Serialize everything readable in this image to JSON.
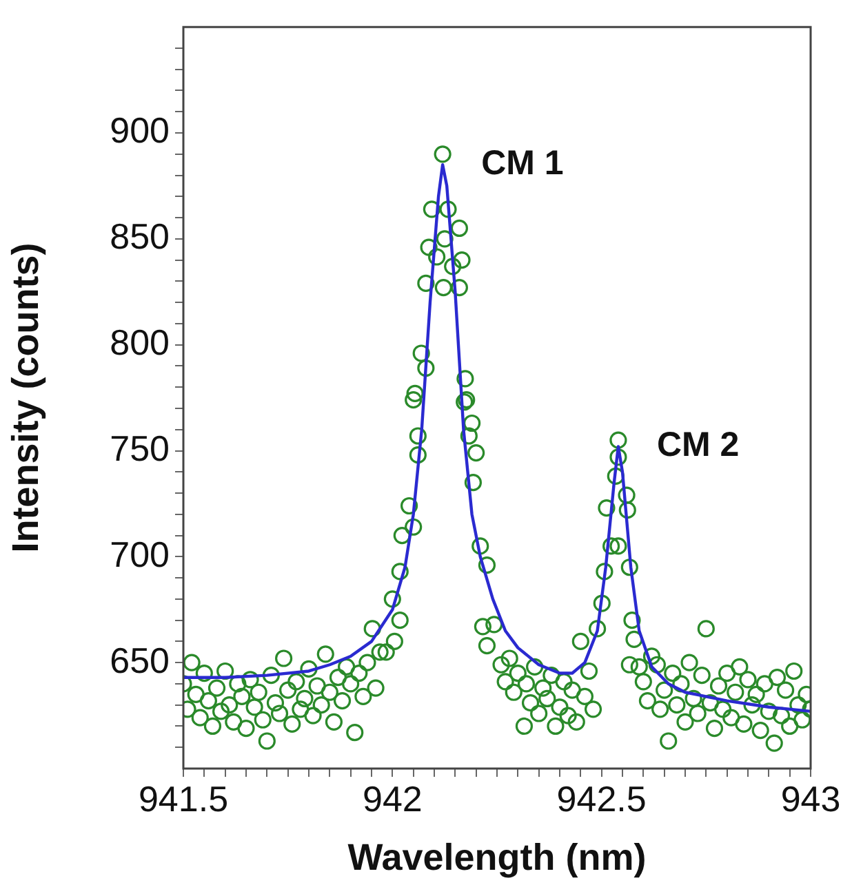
{
  "chart_data": {
    "type": "scatter",
    "xlabel": "Wavelength (nm)",
    "ylabel": "Intensity (counts)",
    "xlim": [
      941.5,
      943
    ],
    "ylim": [
      600,
      950
    ],
    "xticks": [
      941.5,
      {
        "value": 941.55,
        "label": null
      },
      {
        "value": 941.6,
        "label": null
      },
      {
        "value": 941.65,
        "label": null
      },
      {
        "value": 941.7,
        "label": null
      },
      {
        "value": 941.75,
        "label": null
      },
      {
        "value": 941.8,
        "label": null
      },
      {
        "value": 941.85,
        "label": null
      },
      {
        "value": 941.9,
        "label": null
      },
      {
        "value": 941.95,
        "label": null
      },
      942,
      {
        "value": 942.05,
        "label": null
      },
      {
        "value": 942.1,
        "label": null
      },
      {
        "value": 942.15,
        "label": null
      },
      {
        "value": 942.2,
        "label": null
      },
      {
        "value": 942.25,
        "label": null
      },
      {
        "value": 942.3,
        "label": null
      },
      {
        "value": 942.35,
        "label": null
      },
      {
        "value": 942.4,
        "label": null
      },
      {
        "value": 942.45,
        "label": null
      },
      942.5,
      {
        "value": 942.55,
        "label": null
      },
      {
        "value": 942.6,
        "label": null
      },
      {
        "value": 942.65,
        "label": null
      },
      {
        "value": 942.7,
        "label": null
      },
      {
        "value": 942.75,
        "label": null
      },
      {
        "value": 942.8,
        "label": null
      },
      {
        "value": 942.85,
        "label": null
      },
      {
        "value": 942.9,
        "label": null
      },
      {
        "value": 942.95,
        "label": null
      },
      943
    ],
    "yticks": [
      {
        "value": 610,
        "label": null
      },
      {
        "value": 620,
        "label": null
      },
      {
        "value": 630,
        "label": null
      },
      {
        "value": 640,
        "label": null
      },
      650,
      {
        "value": 660,
        "label": null
      },
      {
        "value": 670,
        "label": null
      },
      {
        "value": 680,
        "label": null
      },
      {
        "value": 690,
        "label": null
      },
      700,
      {
        "value": 710,
        "label": null
      },
      {
        "value": 720,
        "label": null
      },
      {
        "value": 730,
        "label": null
      },
      {
        "value": 740,
        "label": null
      },
      750,
      {
        "value": 760,
        "label": null
      },
      {
        "value": 770,
        "label": null
      },
      {
        "value": 780,
        "label": null
      },
      {
        "value": 790,
        "label": null
      },
      800,
      {
        "value": 810,
        "label": null
      },
      {
        "value": 820,
        "label": null
      },
      {
        "value": 830,
        "label": null
      },
      {
        "value": 840,
        "label": null
      },
      850,
      {
        "value": 860,
        "label": null
      },
      {
        "value": 870,
        "label": null
      },
      {
        "value": 880,
        "label": null
      },
      {
        "value": 890,
        "label": null
      },
      900,
      {
        "value": 910,
        "label": null
      },
      {
        "value": 920,
        "label": null
      },
      {
        "value": 930,
        "label": null
      },
      {
        "value": 940,
        "label": null
      }
    ],
    "grid": false,
    "legend": false,
    "annotations": [
      {
        "text": "CM 1",
        "x": 942.12,
        "y": 885
      },
      {
        "text": "CM 2",
        "x": 942.54,
        "y": 752
      }
    ],
    "series": [
      {
        "marker": "circle",
        "color": "#2a8a2a",
        "x": [
          941.5,
          941.51,
          941.52,
          941.53,
          941.54,
          941.55,
          941.56,
          941.57,
          941.58,
          941.59,
          941.6,
          941.61,
          941.62,
          941.63,
          941.64,
          941.65,
          941.66,
          941.67,
          941.68,
          941.69,
          941.7,
          941.71,
          941.72,
          941.73,
          941.74,
          941.75,
          941.76,
          941.77,
          941.78,
          941.79,
          941.8,
          941.81,
          941.82,
          941.83,
          941.84,
          941.85,
          941.86,
          941.87,
          941.88,
          941.89,
          941.9,
          941.91,
          941.92,
          941.93,
          941.94,
          941.952,
          941.96,
          941.97,
          941.985,
          942.0,
          942.005,
          942.018,
          942.018,
          942.023,
          942.04,
          942.05,
          942.05,
          942.054,
          942.061,
          942.061,
          942.069,
          942.08,
          942.08,
          942.087,
          942.094,
          942.106,
          942.12,
          942.122,
          942.125,
          942.133,
          942.144,
          942.16,
          942.16,
          942.166,
          942.172,
          942.174,
          942.177,
          942.183,
          942.19,
          942.193,
          942.2,
          942.21,
          942.216,
          942.226,
          942.226,
          942.243,
          942.26,
          942.27,
          942.28,
          942.29,
          942.3,
          942.315,
          942.32,
          942.33,
          942.34,
          942.35,
          942.36,
          942.37,
          942.38,
          942.39,
          942.4,
          942.41,
          942.42,
          942.43,
          942.44,
          942.45,
          942.46,
          942.47,
          942.48,
          942.49,
          942.501,
          942.507,
          942.512,
          942.523,
          942.534,
          942.54,
          942.54,
          942.54,
          942.56,
          942.562,
          942.567,
          942.567,
          942.573,
          942.578,
          942.59,
          942.6,
          942.61,
          942.62,
          942.633,
          942.64,
          942.65,
          942.66,
          942.67,
          942.68,
          942.69,
          942.7,
          942.71,
          942.72,
          942.73,
          942.74,
          942.75,
          942.76,
          942.77,
          942.78,
          942.79,
          942.8,
          942.81,
          942.82,
          942.83,
          942.84,
          942.85,
          942.86,
          942.87,
          942.88,
          942.89,
          942.9,
          942.913,
          942.92,
          942.93,
          942.94,
          942.95,
          942.96,
          942.97,
          942.98,
          942.99,
          943
        ],
        "values": [
          640,
          628,
          650,
          635,
          624,
          645,
          632,
          620,
          638,
          627,
          646,
          630,
          622,
          640,
          634,
          619,
          642,
          629,
          636,
          623,
          613,
          644,
          631,
          626,
          652,
          637,
          621,
          641,
          628,
          633,
          647,
          625,
          639,
          630,
          654,
          636,
          622,
          643,
          632,
          648,
          640,
          617,
          645,
          634,
          650,
          666,
          638,
          655,
          655,
          680,
          660,
          670,
          693,
          710,
          724,
          714,
          774,
          777,
          757,
          748,
          796,
          789,
          829,
          846,
          864,
          841.5,
          890,
          827,
          850,
          864,
          837,
          855,
          827,
          840,
          773,
          784,
          774,
          757,
          763,
          735,
          749,
          705,
          667,
          696,
          658,
          668,
          649,
          641,
          652,
          636,
          645,
          620,
          640,
          631,
          648,
          626,
          638,
          633,
          644,
          620,
          629,
          641,
          625,
          637,
          622,
          660,
          634,
          646,
          628,
          666,
          678,
          693,
          723,
          705,
          738,
          755,
          747,
          705,
          729,
          722,
          695,
          649,
          670,
          661,
          648,
          641,
          632,
          653,
          649,
          628,
          637,
          613,
          645,
          630,
          640,
          622,
          650,
          633,
          626,
          644,
          666,
          631,
          619,
          639,
          628,
          645,
          624,
          636,
          648,
          621,
          642,
          630,
          635,
          618,
          640,
          627,
          612,
          643,
          625,
          637,
          620,
          646,
          630,
          623,
          635,
          628
        ]
      },
      {
        "type": "line",
        "marker": "none",
        "color": "#2a2ad0",
        "x": [
          941.5,
          941.6,
          941.7,
          941.8,
          941.85,
          941.9,
          941.95,
          942.0,
          942.03,
          942.05,
          942.07,
          942.09,
          942.11,
          942.12,
          942.13,
          942.15,
          942.17,
          942.19,
          942.21,
          942.24,
          942.27,
          942.3,
          942.35,
          942.4,
          942.43,
          942.46,
          942.49,
          942.51,
          942.53,
          942.54,
          942.55,
          942.57,
          942.59,
          942.62,
          942.66,
          942.7,
          942.8,
          942.9,
          943.0
        ],
        "values": [
          643,
          643,
          644,
          646,
          649,
          653,
          660,
          675,
          695,
          720,
          760,
          820,
          870,
          885,
          875,
          825,
          760,
          720,
          700,
          680,
          665,
          657,
          649,
          645,
          645,
          650,
          665,
          695,
          735,
          752,
          740,
          695,
          665,
          648,
          640,
          636,
          632,
          629,
          627
        ]
      }
    ]
  }
}
